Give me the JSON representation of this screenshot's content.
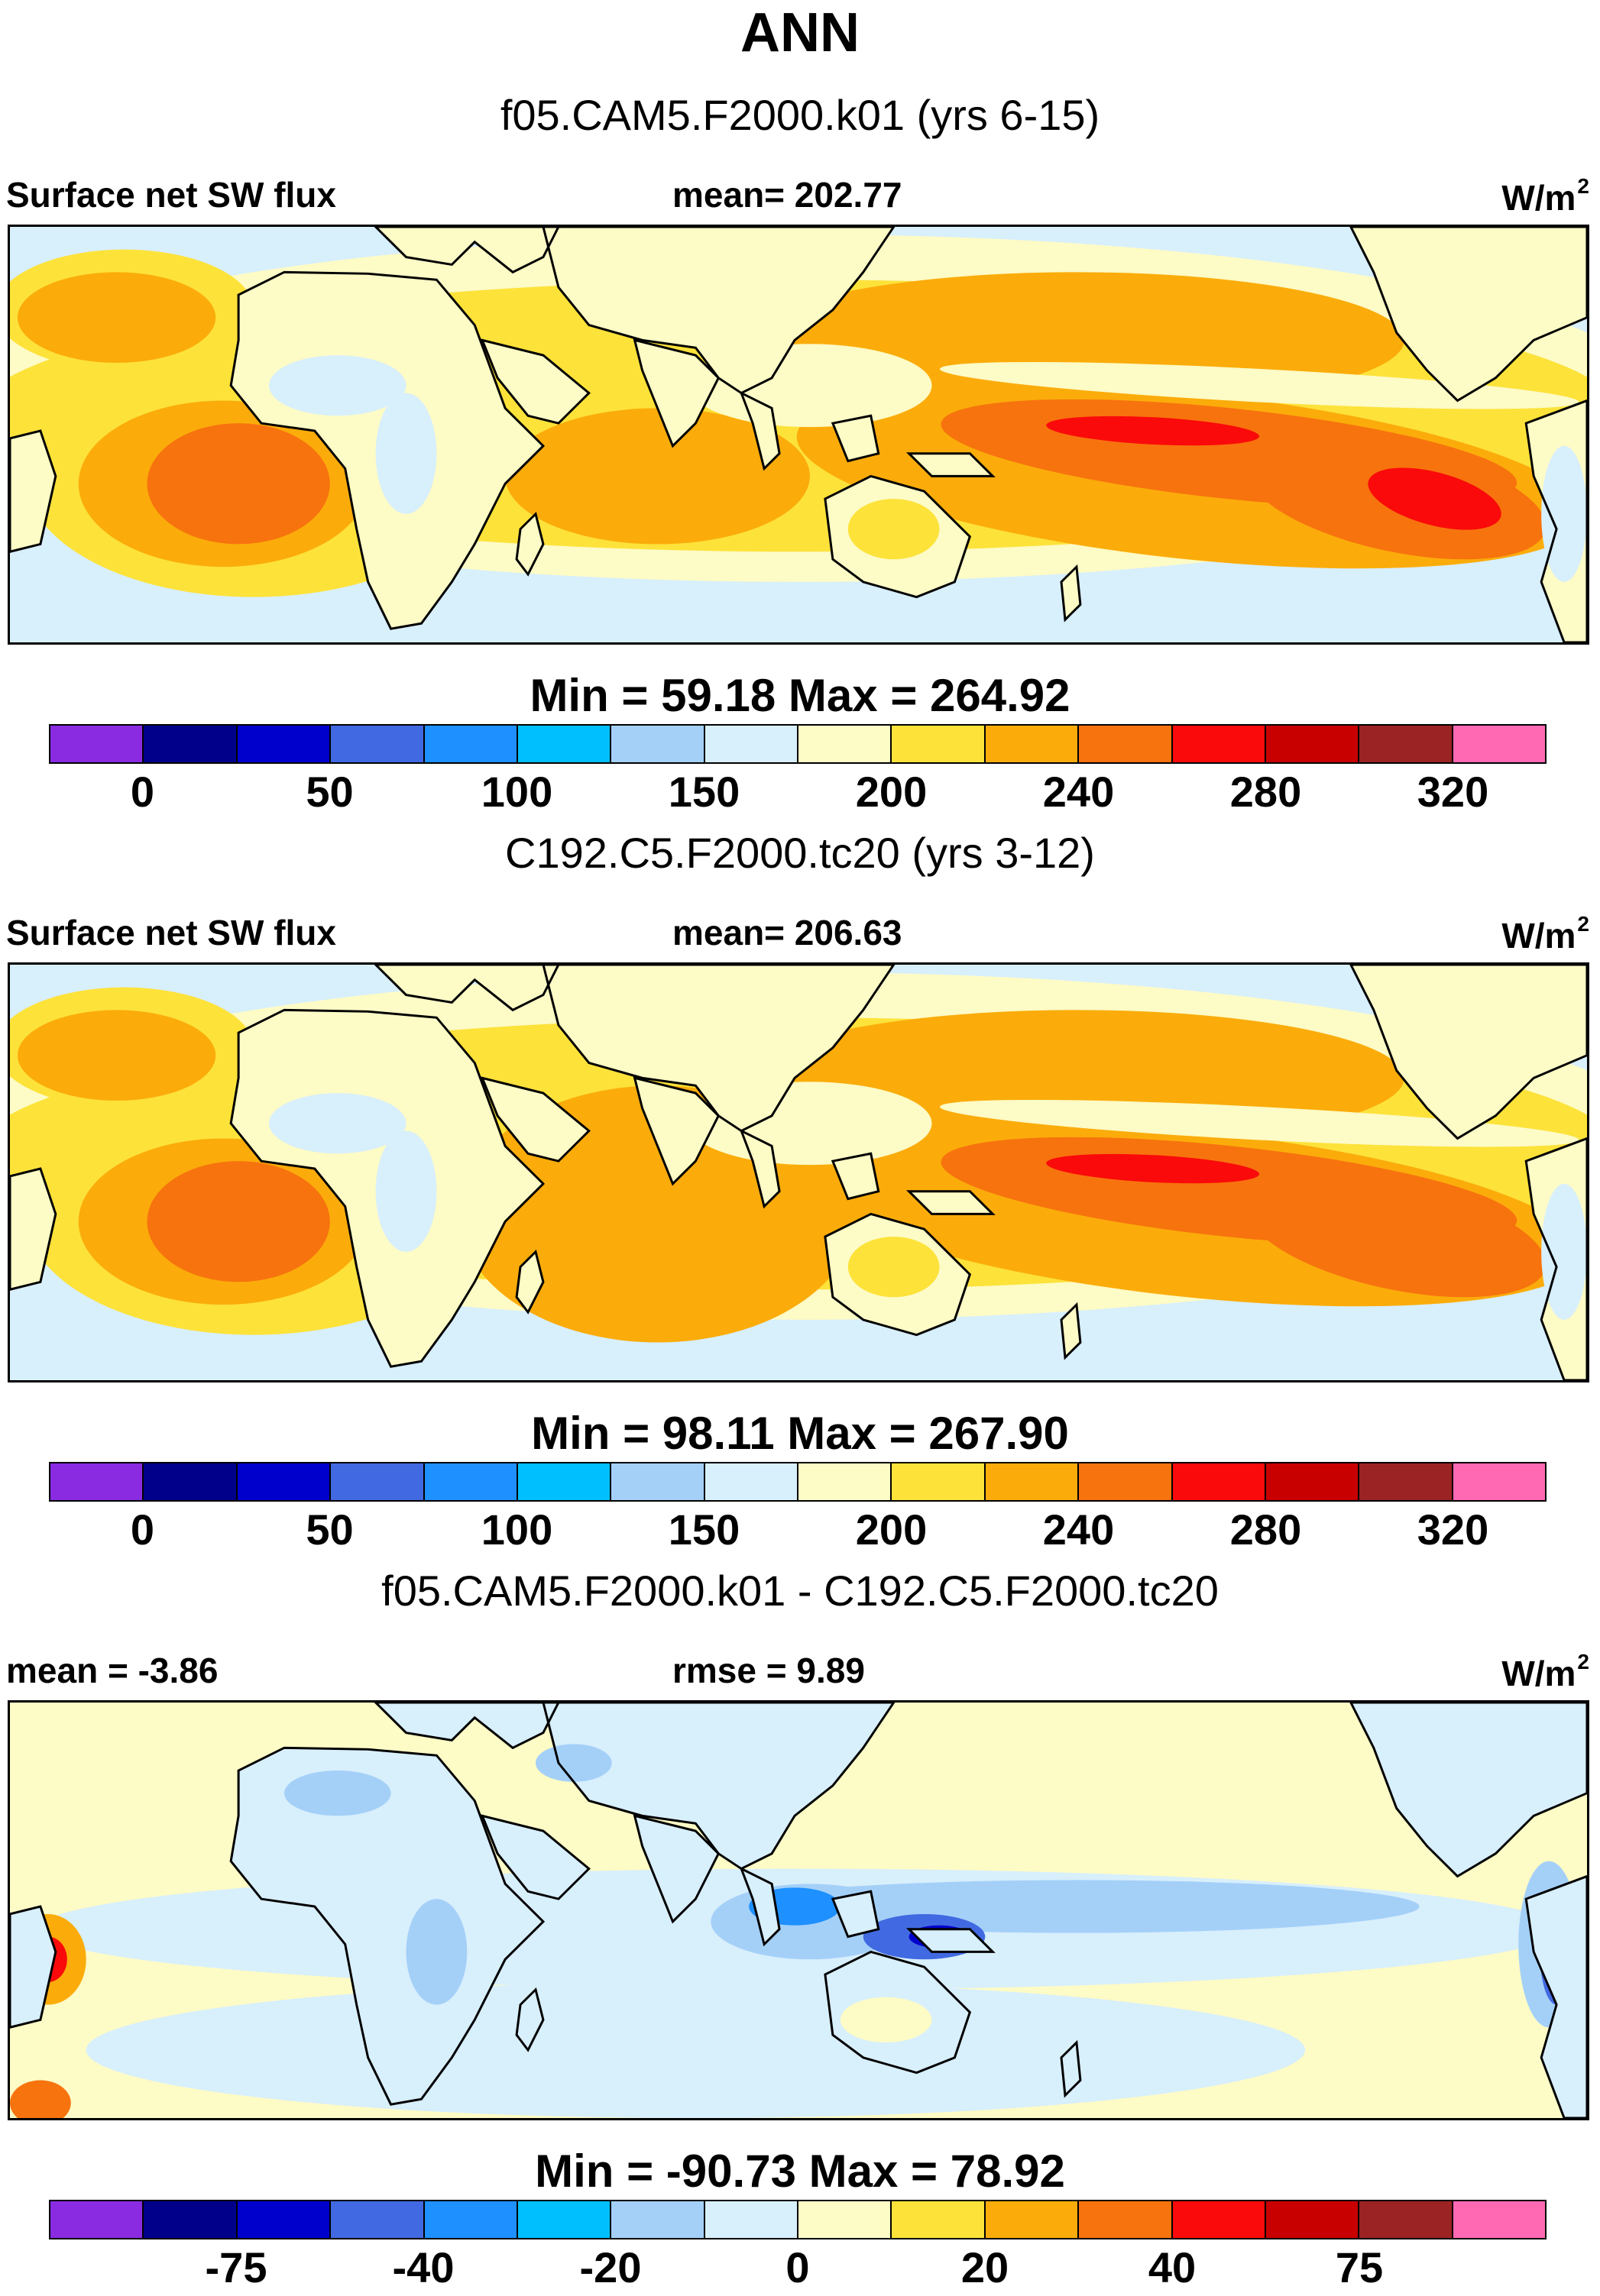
{
  "page_title": "ANN",
  "panels": [
    {
      "case_title": "f05.CAM5.F2000.k01 (yrs 6-15)",
      "left_label": "Surface net SW flux",
      "stat_label": "mean= 202.77",
      "units": "W/m",
      "units_exp": "2",
      "min_max": "Min =  59.18 Max = 264.92",
      "colorbar_ticks": [
        "0",
        "50",
        "100",
        "150",
        "200",
        "240",
        "280",
        "320"
      ],
      "map_style": "abs1"
    },
    {
      "case_title": "C192.C5.F2000.tc20 (yrs 3-12)",
      "left_label": "Surface net SW flux",
      "stat_label": "mean= 206.63",
      "units": "W/m",
      "units_exp": "2",
      "min_max": "Min =  98.11 Max = 267.90",
      "colorbar_ticks": [
        "0",
        "50",
        "100",
        "150",
        "200",
        "240",
        "280",
        "320"
      ],
      "map_style": "abs2"
    },
    {
      "case_title": "f05.CAM5.F2000.k01 - C192.C5.F2000.tc20",
      "left_label": "mean =  -3.86",
      "stat_label": "rmse =   9.89",
      "units": "W/m",
      "units_exp": "2",
      "min_max": "Min = -90.73 Max =  78.92",
      "colorbar_ticks": [
        "-75",
        "-40",
        "-20",
        "0",
        "20",
        "40",
        "75"
      ],
      "map_style": "diff"
    }
  ],
  "colorbar_colors": [
    "#8a2be2",
    "#00008b",
    "#0000cd",
    "#4169e1",
    "#1e90ff",
    "#00bfff",
    "#a4d0f8",
    "#d8effc",
    "#fdfbc6",
    "#fde23a",
    "#fbac0a",
    "#f7730e",
    "#fa0a0a",
    "#c80000",
    "#9b2323",
    "#ff69b4"
  ],
  "colors": {
    "ocean_light": "#d8effc",
    "cream": "#fdfbc6",
    "yellow": "#fde23a",
    "orange": "#fbac0a",
    "dark_orange": "#f7730e",
    "red": "#fa0a0a",
    "light_blue": "#a4d0f8",
    "mid_blue": "#1e90ff",
    "royal_blue": "#4169e1",
    "coast": "#000000"
  }
}
